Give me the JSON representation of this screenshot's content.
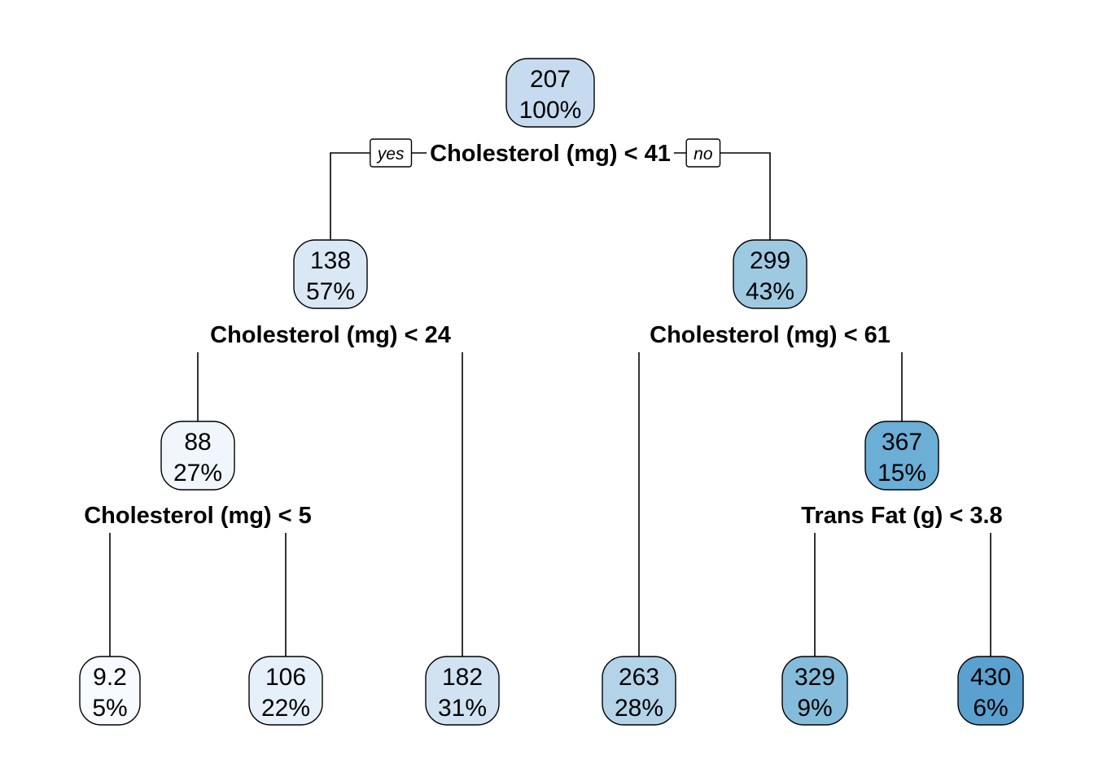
{
  "tree": {
    "nodes": [
      {
        "id": "n1",
        "value": "207",
        "percent": "100%",
        "color": "#c6dbef",
        "split": "Cholesterol (mg) < 41"
      },
      {
        "id": "n2",
        "value": "138",
        "percent": "57%",
        "color": "#dae8f5",
        "split": "Cholesterol (mg) < 24"
      },
      {
        "id": "n3",
        "value": "299",
        "percent": "43%",
        "color": "#9ecae1",
        "split": "Cholesterol (mg) < 61"
      },
      {
        "id": "n4",
        "value": "88",
        "percent": "27%",
        "color": "#f0f6fc",
        "split": "Cholesterol (mg) < 5"
      },
      {
        "id": "n5",
        "value": "182",
        "percent": "31%",
        "color": "#d1e3f2",
        "split": ""
      },
      {
        "id": "n6",
        "value": "263",
        "percent": "28%",
        "color": "#b3d3e8",
        "split": ""
      },
      {
        "id": "n7",
        "value": "367",
        "percent": "15%",
        "color": "#6baed6",
        "split": "Trans Fat (g) < 3.8"
      },
      {
        "id": "n8",
        "value": "9.2",
        "percent": "5%",
        "color": "#f7fbff",
        "split": ""
      },
      {
        "id": "n9",
        "value": "106",
        "percent": "22%",
        "color": "#e6f0fa",
        "split": ""
      },
      {
        "id": "n14",
        "value": "329",
        "percent": "9%",
        "color": "#85bcdc",
        "split": ""
      },
      {
        "id": "n15",
        "value": "430",
        "percent": "6%",
        "color": "#5aa1cf",
        "split": ""
      }
    ],
    "edges": [
      {
        "from": "n1",
        "to": "n2"
      },
      {
        "from": "n1",
        "to": "n3"
      },
      {
        "from": "n2",
        "to": "n4"
      },
      {
        "from": "n2",
        "to": "n5"
      },
      {
        "from": "n3",
        "to": "n6"
      },
      {
        "from": "n3",
        "to": "n7"
      },
      {
        "from": "n4",
        "to": "n8"
      },
      {
        "from": "n4",
        "to": "n9"
      },
      {
        "from": "n7",
        "to": "n14"
      },
      {
        "from": "n7",
        "to": "n15"
      }
    ],
    "branch_labels": {
      "left": "yes",
      "right": "no"
    }
  }
}
